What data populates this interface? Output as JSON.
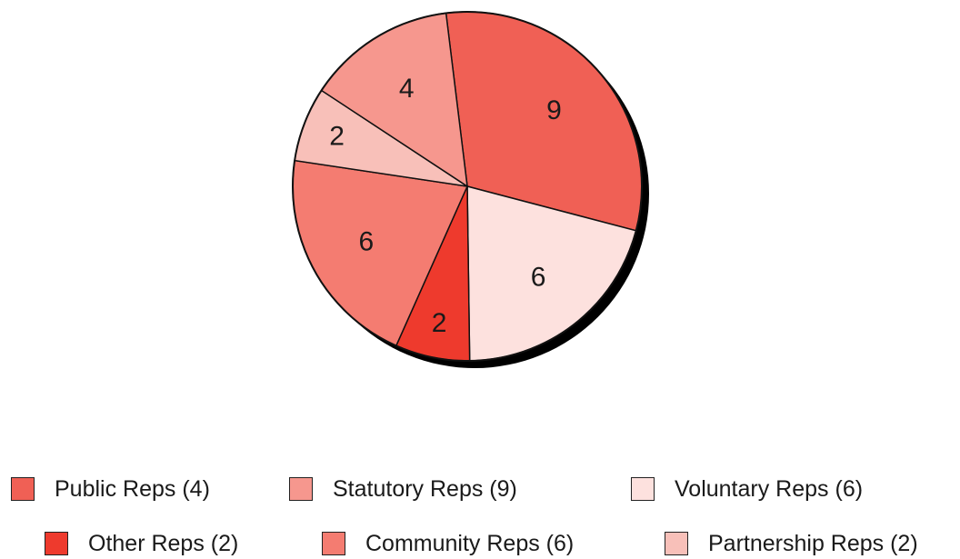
{
  "chart_data": {
    "type": "pie",
    "slices": [
      {
        "name": "Statutory Reps",
        "value": 9,
        "label": "9",
        "color": "#f06055"
      },
      {
        "name": "Voluntary Reps",
        "value": 6,
        "label": "6",
        "color": "#fde1de"
      },
      {
        "name": "Other Reps",
        "value": 2,
        "label": "2",
        "color": "#ee3a2d"
      },
      {
        "name": "Community Reps",
        "value": 6,
        "label": "6",
        "color": "#f47c71"
      },
      {
        "name": "Partnership Reps",
        "value": 2,
        "label": "2",
        "color": "#f8c0b9"
      },
      {
        "name": "Public Reps",
        "value": 4,
        "label": "4",
        "color": "#f6978e"
      }
    ]
  },
  "legend": {
    "items": [
      {
        "label": "Public Reps (4)",
        "color": "#f06055"
      },
      {
        "label": "Statutory Reps (9)",
        "color": "#f6978e"
      },
      {
        "label": "Voluntary Reps (6)",
        "color": "#fde1de"
      },
      {
        "label": "Other Reps (2)",
        "color": "#ee3a2d"
      },
      {
        "label": "Community Reps (6)",
        "color": "#f47c71"
      },
      {
        "label": "Partnership Reps (2)",
        "color": "#f8c0b9"
      }
    ]
  }
}
